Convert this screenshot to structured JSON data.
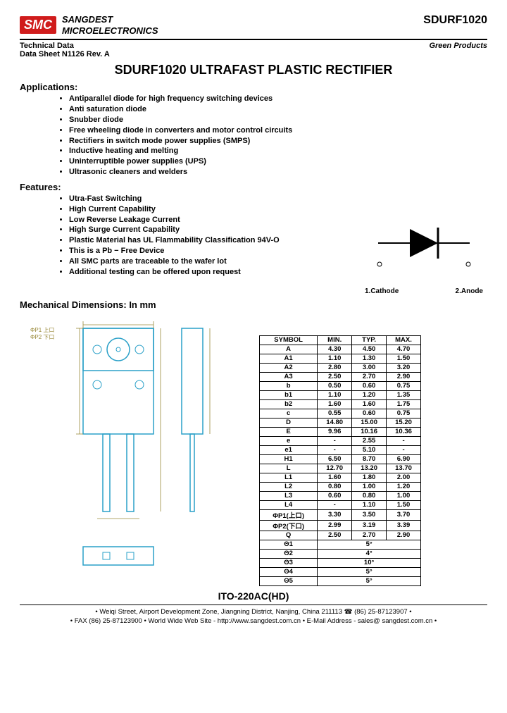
{
  "header": {
    "logo_text": "SMC",
    "logo_bg": "#d01c1c",
    "company_line1": "SANGDEST",
    "company_line2": "MICROELECTRONICS",
    "part_number": "SDURF1020"
  },
  "subheader": {
    "tech_data": "Technical Data",
    "rev": "Data Sheet N1126 Rev. A",
    "green": "Green Products"
  },
  "title": "SDURF1020 ULTRAFAST PLASTIC RECTIFIER",
  "applications": {
    "heading": "Applications:",
    "items": [
      "Antiparallel diode for high frequency switching devices",
      "Anti saturation diode",
      "Snubber diode",
      "Free wheeling diode in converters and motor control circuits",
      "Rectifiers in switch mode power supplies (SMPS)",
      "Inductive heating and melting",
      "Uninterruptible power supplies (UPS)",
      "Ultrasonic cleaners and welders"
    ]
  },
  "features": {
    "heading": "Features:",
    "items": [
      "Utra-Fast Switching",
      "High Current Capability",
      "Low Reverse Leakage Current",
      "High Surge Current Capability",
      "Plastic Material has UL Flammability Classification 94V-O",
      "This is a Pb − Free Device",
      "All SMC parts are traceable to the wafer lot",
      "Additional testing can be offered upon request"
    ]
  },
  "diode": {
    "pin1": "1.Cathode",
    "pin2": "2.Anode"
  },
  "mech": {
    "heading": "Mechanical Dimensions: In mm",
    "package": "ITO-220AC(HD)",
    "table": {
      "columns": [
        "SYMBOL",
        "MIN.",
        "TYP.",
        "MAX."
      ],
      "rows": [
        [
          "A",
          "4.30",
          "4.50",
          "4.70"
        ],
        [
          "A1",
          "1.10",
          "1.30",
          "1.50"
        ],
        [
          "A2",
          "2.80",
          "3.00",
          "3.20"
        ],
        [
          "A3",
          "2.50",
          "2.70",
          "2.90"
        ],
        [
          "b",
          "0.50",
          "0.60",
          "0.75"
        ],
        [
          "b1",
          "1.10",
          "1.20",
          "1.35"
        ],
        [
          "b2",
          "1.60",
          "1.60",
          "1.75"
        ],
        [
          "c",
          "0.55",
          "0.60",
          "0.75"
        ],
        [
          "D",
          "14.80",
          "15.00",
          "15.20"
        ],
        [
          "E",
          "9.96",
          "10.16",
          "10.36"
        ],
        [
          "e",
          "-",
          "2.55",
          "-"
        ],
        [
          "e1",
          "-",
          "5.10",
          "-"
        ],
        [
          "H1",
          "6.50",
          "8.70",
          "6.90"
        ],
        [
          "L",
          "12.70",
          "13.20",
          "13.70"
        ],
        [
          "L1",
          "1.60",
          "1.80",
          "2.00"
        ],
        [
          "L2",
          "0.80",
          "1.00",
          "1.20"
        ],
        [
          "L3",
          "0.60",
          "0.80",
          "1.00"
        ],
        [
          "L4",
          "-",
          "1.10",
          "1.50"
        ],
        [
          "ΦP1(上口)",
          "3.30",
          "3.50",
          "3.70"
        ],
        [
          "ΦP2(下口)",
          "2.99",
          "3.19",
          "3.39"
        ],
        [
          "Q",
          "2.50",
          "2.70",
          "2.90"
        ],
        [
          "Θ1",
          "",
          "5°",
          ""
        ],
        [
          "Θ2",
          "",
          "4°",
          ""
        ],
        [
          "Θ3",
          "",
          "10°",
          ""
        ],
        [
          "Θ4",
          "",
          "5°",
          ""
        ],
        [
          "Θ5",
          "",
          "5°",
          ""
        ]
      ]
    }
  },
  "footer": {
    "line1": "• Weiqi Street, Airport Development Zone, Jiangning District, Nanjing, China 211113 ☎ (86) 25-87123907 •",
    "line2": "• FAX (86) 25-87123900 • World Wide Web Site - http://www.sangdest.com.cn • E-Mail Address - sales@ sangdest.com.cn •"
  },
  "colors": {
    "drawing_line": "#2aa0c8",
    "drawing_dim": "#9a8a3a",
    "text": "#000000"
  }
}
